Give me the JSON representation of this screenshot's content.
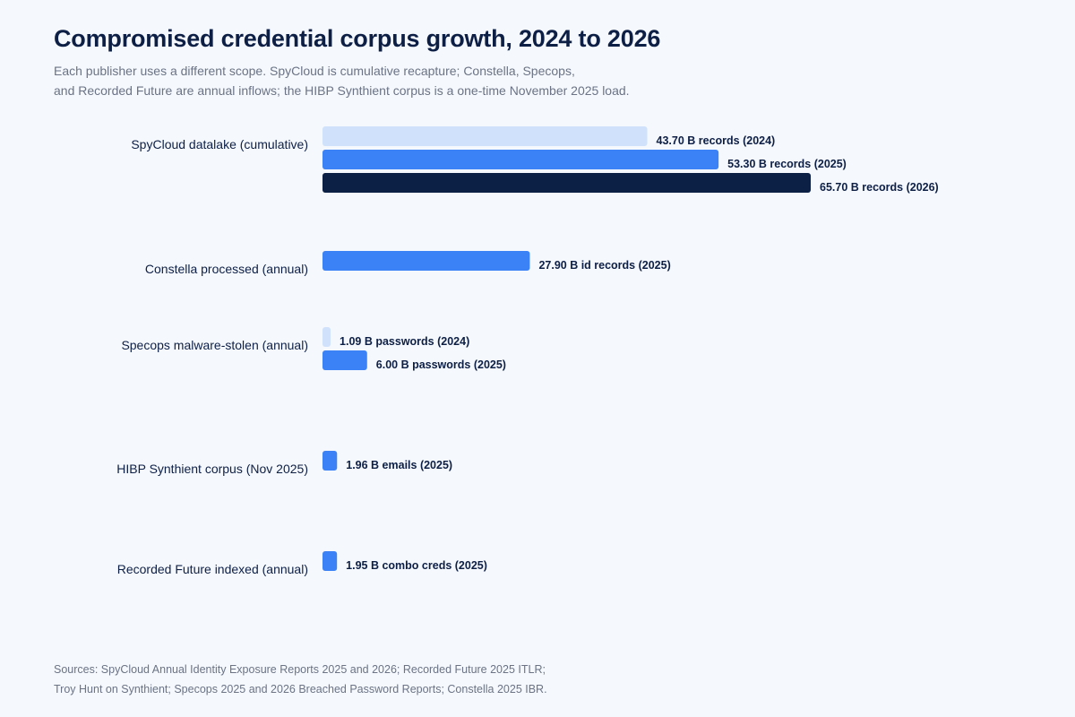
{
  "title": "Compromised credential corpus growth, 2024 to 2026",
  "subtitle_lines": [
    "Each publisher uses a different scope. SpyCloud is cumulative recapture; Constella, Specops,",
    "and Recorded Future are annual inflows; the HIBP Synthient corpus is a one-time November 2025 load."
  ],
  "sources_lines": [
    "Sources: SpyCloud Annual Identity Exposure Reports 2025 and 2026; Recorded Future 2025 ITLR;",
    "Troy Hunt on Synthient; Specops 2025 and 2026 Breached Password Reports; Constella 2025 IBR."
  ],
  "colors": {
    "2024": "#d0e1fb",
    "2025": "#3b82f6",
    "2026": "#0c1f45"
  },
  "chart_data": {
    "type": "bar",
    "orientation": "horizontal",
    "title": "Compromised credential corpus growth, 2024 to 2026",
    "xlabel": "",
    "ylabel": "",
    "units": "billions",
    "xlim": [
      0,
      65.7
    ],
    "grid": false,
    "legend": "none",
    "groups": [
      {
        "category": "SpyCloud datalake (cumulative)",
        "bars": [
          {
            "year": "2024",
            "value": 43.7,
            "label": "43.70 B records (2024)"
          },
          {
            "year": "2025",
            "value": 53.3,
            "label": "53.30 B records (2025)"
          },
          {
            "year": "2026",
            "value": 65.7,
            "label": "65.70 B records (2026)"
          }
        ]
      },
      {
        "category": "Constella processed (annual)",
        "bars": [
          {
            "year": "2025",
            "value": 27.9,
            "label": "27.90 B id records (2025)"
          }
        ]
      },
      {
        "category": "Specops malware-stolen (annual)",
        "bars": [
          {
            "year": "2024",
            "value": 1.09,
            "label": "1.09 B passwords (2024)"
          },
          {
            "year": "2025",
            "value": 6.0,
            "label": "6.00 B passwords (2025)"
          }
        ]
      },
      {
        "category": "HIBP Synthient corpus (Nov 2025)",
        "bars": [
          {
            "year": "2025",
            "value": 1.96,
            "label": "1.96 B emails (2025)"
          }
        ]
      },
      {
        "category": "Recorded Future indexed (annual)",
        "bars": [
          {
            "year": "2025",
            "value": 1.95,
            "label": "1.95 B combo creds (2025)"
          }
        ]
      }
    ]
  }
}
